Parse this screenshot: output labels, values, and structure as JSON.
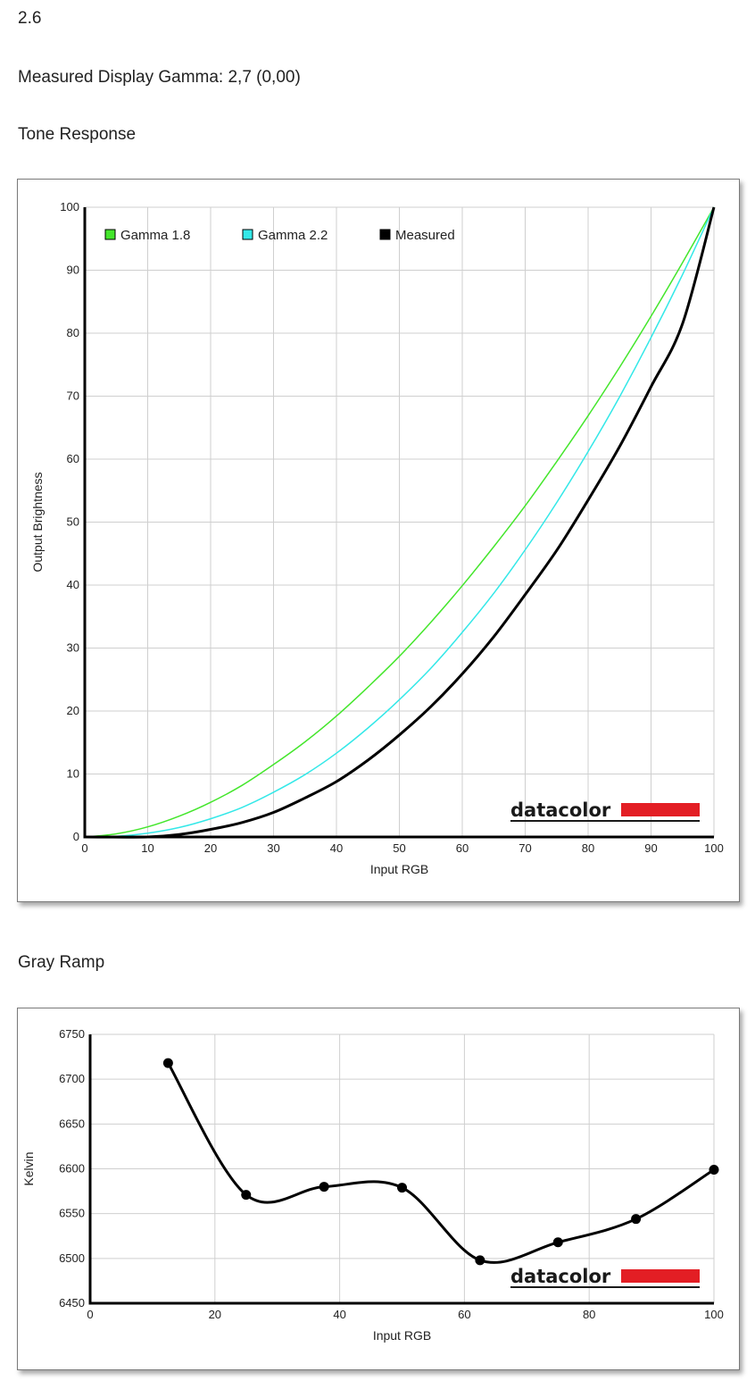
{
  "header": {
    "value": "2.6",
    "measured_gamma": "Measured Display Gamma: 2,7 (0,00)"
  },
  "sections": {
    "tone_response": "Tone Response",
    "gray_ramp": "Gray Ramp"
  },
  "logo": {
    "text": "datacolor",
    "accent_color": "#e31e24"
  },
  "chart_data": [
    {
      "type": "line",
      "xlabel": "Input RGB",
      "ylabel": "Output Brightness",
      "xlim": [
        0,
        100
      ],
      "ylim": [
        0,
        100
      ],
      "x_ticks": [
        "0",
        "10",
        "20",
        "30",
        "40",
        "50",
        "60",
        "70",
        "80",
        "90",
        "100"
      ],
      "y_ticks": [
        "0",
        "10",
        "20",
        "30",
        "40",
        "50",
        "60",
        "70",
        "80",
        "90",
        "100"
      ],
      "grid": true,
      "legend_position": "top-left",
      "series": [
        {
          "name": "Gamma 1.8",
          "color": "#44e62c",
          "x": [
            0,
            5,
            10,
            15,
            20,
            25,
            30,
            35,
            40,
            45,
            50,
            55,
            60,
            65,
            70,
            75,
            80,
            85,
            90,
            95,
            100
          ],
          "y": [
            0,
            0.5,
            1.6,
            3.3,
            5.5,
            8.2,
            11.5,
            15.1,
            19.2,
            23.8,
            28.7,
            34.1,
            39.9,
            46.1,
            52.6,
            59.6,
            66.9,
            74.6,
            82.7,
            91.2,
            100
          ]
        },
        {
          "name": "Gamma 2.2",
          "color": "#33e8e8",
          "x": [
            0,
            5,
            10,
            15,
            20,
            25,
            30,
            35,
            40,
            45,
            50,
            55,
            60,
            65,
            70,
            75,
            80,
            85,
            90,
            95,
            100
          ],
          "y": [
            0,
            0.1,
            0.6,
            1.5,
            2.9,
            4.7,
            7.1,
            9.9,
            13.3,
            17.3,
            21.8,
            26.8,
            32.5,
            38.7,
            45.6,
            53.1,
            61.2,
            69.9,
            79.3,
            89.3,
            100
          ]
        },
        {
          "name": "Measured",
          "color": "#000000",
          "x": [
            0,
            10,
            15,
            20,
            25,
            30,
            35,
            40,
            45,
            50,
            55,
            60,
            65,
            70,
            75,
            80,
            85,
            90,
            95,
            100
          ],
          "y": [
            0,
            0,
            0.4,
            1.2,
            2.3,
            3.9,
            6.2,
            8.8,
            12.2,
            16.2,
            20.7,
            25.9,
            31.8,
            38.5,
            45.5,
            53.5,
            62,
            71.5,
            81.5,
            100
          ]
        }
      ]
    },
    {
      "type": "line",
      "xlabel": "Input RGB",
      "ylabel": "Kelvin",
      "xlim": [
        0,
        100
      ],
      "ylim": [
        6450,
        6750
      ],
      "x_ticks": [
        "0",
        "20",
        "40",
        "60",
        "80",
        "100"
      ],
      "y_ticks": [
        "6450",
        "6500",
        "6550",
        "6600",
        "6650",
        "6700",
        "6750"
      ],
      "grid": true,
      "series": [
        {
          "name": "",
          "color": "#000000",
          "x": [
            12.5,
            25,
            37.5,
            50,
            62.5,
            75,
            87.5,
            100
          ],
          "y": [
            6718,
            6571,
            6580,
            6579,
            6498,
            6518,
            6544,
            6599
          ]
        }
      ]
    }
  ]
}
